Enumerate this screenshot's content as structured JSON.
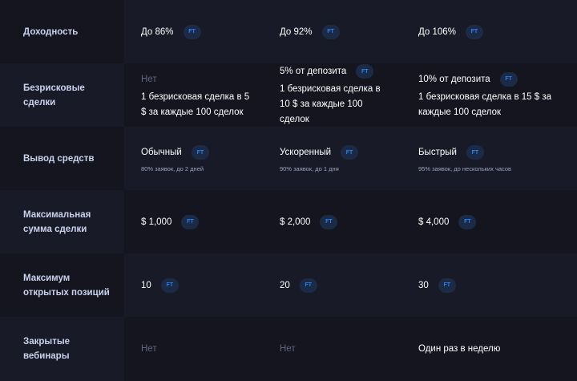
{
  "badge_label": "FT",
  "colors": {
    "accent": "#2f7ff0",
    "badge_bg": "#1b2a45",
    "label": "#c9d3ee",
    "muted": "#5d6782"
  },
  "rows": [
    {
      "label": "Доходность",
      "cells": [
        {
          "value": "До 86%",
          "badge": true
        },
        {
          "value": "До 92%",
          "badge": true
        },
        {
          "value": "До 106%",
          "badge": true
        }
      ]
    },
    {
      "label": "Безрисковые сделки",
      "cells": [
        {
          "value": "Нет",
          "muted": true,
          "desc": "1 безрисковая сделка в 5 $ за каждые 100 сделок"
        },
        {
          "value": "5% от депозита",
          "badge": true,
          "desc": "1 безрисковая сделка в 10 $ за каждые 100 сделок"
        },
        {
          "value": "10% от депозита",
          "badge": true,
          "desc": "1 безрисковая сделка в 15 $ за каждые 100 сделок"
        }
      ]
    },
    {
      "label": "Вывод средств",
      "cells": [
        {
          "value": "Обычный",
          "badge": true,
          "note": "80% заявок, до 2 дней"
        },
        {
          "value": "Ускоренный",
          "badge": true,
          "note": "90% заявок, до 1 дня"
        },
        {
          "value": "Быстрый",
          "badge": true,
          "note": "95% заявок, до нескольких часов"
        }
      ]
    },
    {
      "label": "Максимальная сумма сделки",
      "cells": [
        {
          "value": "$ 1,000",
          "badge": true
        },
        {
          "value": "$ 2,000",
          "badge": true
        },
        {
          "value": "$ 4,000",
          "badge": true
        }
      ]
    },
    {
      "label": "Максимум открытых позиций",
      "cells": [
        {
          "value": "10",
          "badge": true
        },
        {
          "value": "20",
          "badge": true
        },
        {
          "value": "30",
          "badge": true
        }
      ]
    },
    {
      "label": "Закрытые вебинары",
      "cells": [
        {
          "value": "Нет",
          "muted": true
        },
        {
          "value": "Нет",
          "muted": true
        },
        {
          "value": "Один раз в неделю"
        }
      ]
    }
  ]
}
